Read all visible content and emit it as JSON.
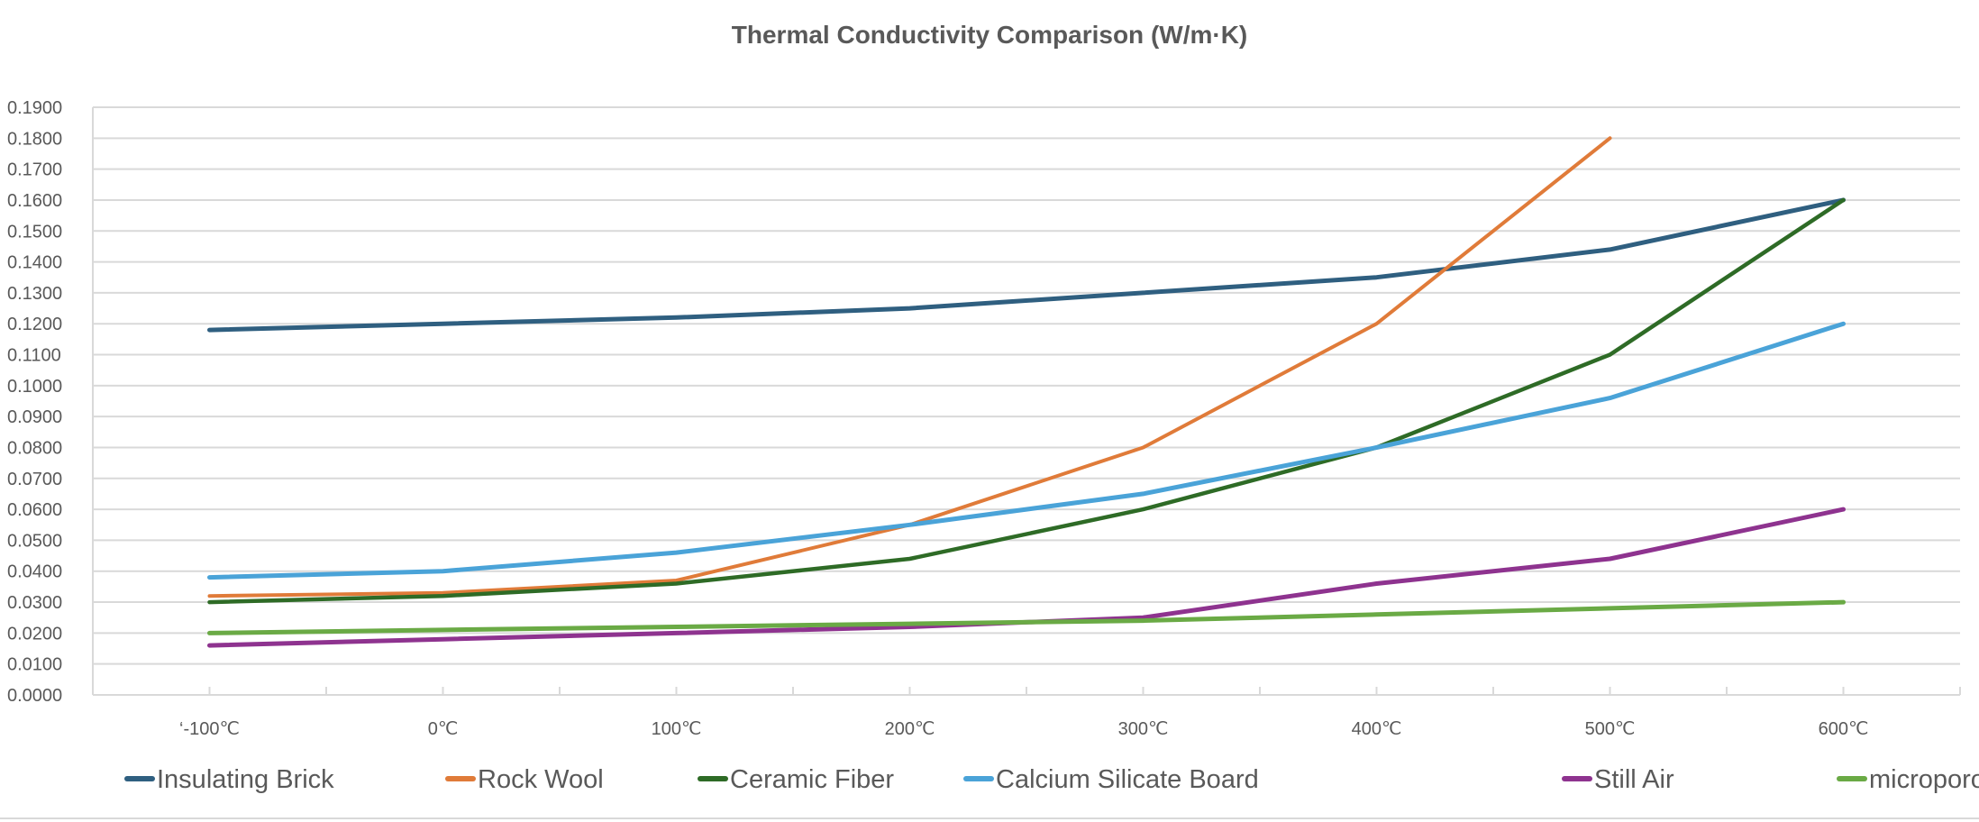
{
  "chart_data": {
    "type": "line",
    "title": "Thermal Conductivity Comparison (W/m·K)",
    "xlabel": "",
    "ylabel": "",
    "categories": [
      "‘-100℃",
      "0℃",
      "100℃",
      "200℃",
      "300℃",
      "400℃",
      "500℃",
      "600℃"
    ],
    "ylim": [
      0,
      0.19
    ],
    "ytick_step": 0.01,
    "ytick_labels": [
      "0.0000",
      "0.0100",
      "0.0200",
      "0.0300",
      "0.0400",
      "0.0500",
      "0.0600",
      "0.0700",
      "0.0800",
      "0.0900",
      "0.1000",
      "0.1100",
      "0.1200",
      "0.1300",
      "0.1400",
      "0.1500",
      "0.1600",
      "0.1700",
      "0.1800",
      "0.1900"
    ],
    "grid": true,
    "legend_position": "bottom",
    "series": [
      {
        "name": "Insulating Brick",
        "color": "#2F5F80",
        "values": [
          0.118,
          0.12,
          0.122,
          0.125,
          0.13,
          0.135,
          0.144,
          0.16
        ]
      },
      {
        "name": "Rock Wool",
        "color": "#E07B39",
        "values": [
          0.032,
          0.033,
          0.037,
          0.055,
          0.08,
          0.12,
          0.18,
          null
        ]
      },
      {
        "name": "Ceramic Fiber",
        "color": "#2E6B26",
        "values": [
          0.03,
          0.032,
          0.036,
          0.044,
          0.06,
          0.08,
          0.11,
          0.16
        ]
      },
      {
        "name": "Calcium Silicate Board",
        "color": "#4AA3D8",
        "values": [
          0.038,
          0.04,
          0.046,
          0.055,
          0.065,
          0.08,
          0.096,
          0.12
        ]
      },
      {
        "name": "Still Air",
        "color": "#8E338F",
        "values": [
          0.016,
          0.018,
          0.02,
          0.022,
          0.025,
          0.036,
          0.044,
          0.06
        ]
      },
      {
        "name": "microporous",
        "color": "#6AAA45",
        "values": [
          0.02,
          0.021,
          0.022,
          0.023,
          0.024,
          0.026,
          0.028,
          0.03
        ]
      }
    ]
  }
}
